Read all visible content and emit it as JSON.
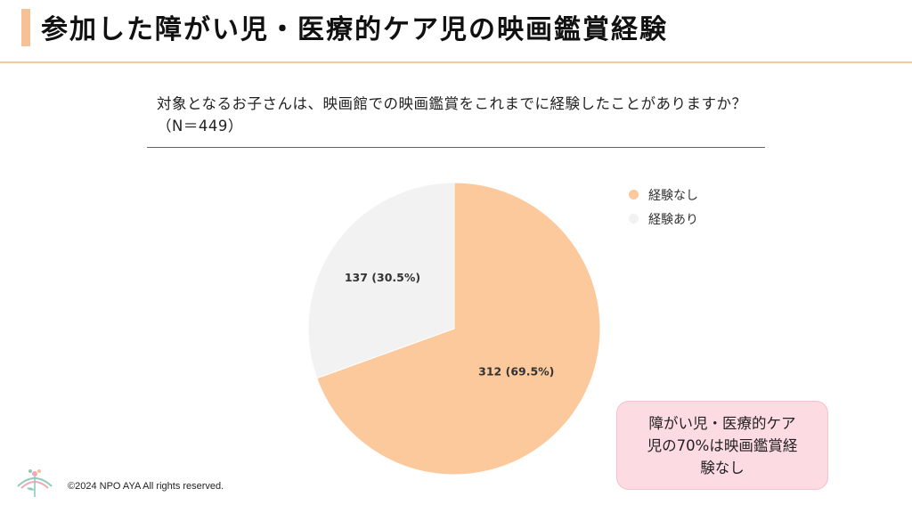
{
  "header": {
    "title": "参加した障がい児・医療的ケア児の映画鑑賞経験"
  },
  "question": {
    "text": "対象となるお子さんは、映画館での映画鑑賞をこれまでに経験したことがありますか？（N＝449）"
  },
  "chart_data": {
    "type": "pie",
    "total": 449,
    "slices": [
      {
        "name": "経験なし",
        "value": 312,
        "percent": 69.5,
        "label": "312 (69.5%)",
        "color": "#fbc99c"
      },
      {
        "name": "経験あり",
        "value": 137,
        "percent": 30.5,
        "label": "137 (30.5%)",
        "color": "#f2f2f2"
      }
    ],
    "legend_position": "right"
  },
  "legend": {
    "items": [
      {
        "label": "経験なし",
        "color": "#fbc99c"
      },
      {
        "label": "経験あり",
        "color": "#f2f2f2"
      }
    ]
  },
  "callout": {
    "text": "障がい児・医療的ケア\n児の70%は映画鑑賞経\n験なし"
  },
  "footer": {
    "copyright": "©2024 NPO AYA All rights reserved."
  },
  "colors": {
    "accent": "#f6c196",
    "callout_bg": "#fddbe2"
  }
}
